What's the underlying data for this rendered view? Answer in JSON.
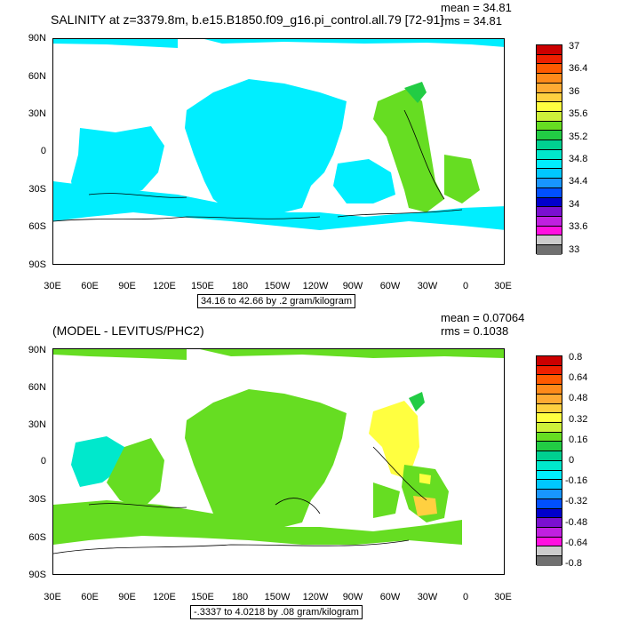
{
  "top": {
    "title": "SALINITY at z=3379.8m, b.e15.B1850.f09_g16.pi_control.all.79 [72-91]",
    "mean": "mean = 34.81",
    "rms": "rms = 34.81",
    "range_label": "34.16 to 42.66 by .2 gram/kilogram",
    "colorbar_labels": [
      "37",
      "36.4",
      "36",
      "35.6",
      "35.2",
      "34.8",
      "34.4",
      "34",
      "33.6",
      "33"
    ],
    "colorbar_colors": [
      "#cc0000",
      "#ee2000",
      "#ff5a00",
      "#ff8a1a",
      "#ffaa33",
      "#ffd040",
      "#ffff40",
      "#cdf03a",
      "#66dd22",
      "#22cc44",
      "#00d090",
      "#00e8cc",
      "#00eeff",
      "#00c8ff",
      "#1896ff",
      "#0050ff",
      "#0000cc",
      "#7a10d0",
      "#c020e0",
      "#ff10e0",
      "#cccccc",
      "#707070"
    ]
  },
  "bottom": {
    "title": "(MODEL - LEVITUS/PHC2)",
    "mean": "mean = 0.07064",
    "rms": "rms = 0.1038",
    "range_label": "-.3337 to 4.0218 by .08 gram/kilogram",
    "colorbar_labels": [
      "0.8",
      "0.64",
      "0.48",
      "0.32",
      "0.16",
      "0",
      "-0.16",
      "-0.32",
      "-0.48",
      "-0.64",
      "-0.8"
    ],
    "colorbar_colors": [
      "#cc0000",
      "#ee2000",
      "#ff5a00",
      "#ff8a1a",
      "#ffaa33",
      "#ffd040",
      "#ffff40",
      "#cdf03a",
      "#66dd22",
      "#22cc44",
      "#00d090",
      "#00e8cc",
      "#00eeff",
      "#00c8ff",
      "#1896ff",
      "#0050ff",
      "#0000cc",
      "#7a10d0",
      "#c020e0",
      "#ff10e0",
      "#cccccc",
      "#707070"
    ]
  },
  "axes": {
    "y_labels": [
      "90N",
      "60N",
      "30N",
      "0",
      "30S",
      "60S",
      "90S"
    ],
    "x_labels": [
      "30E",
      "60E",
      "90E",
      "120E",
      "150E",
      "180",
      "150W",
      "120W",
      "90W",
      "60W",
      "30W",
      "0",
      "30E"
    ]
  },
  "colors": {
    "cyan": "#00eeff",
    "green": "#66dd22",
    "teal": "#22cc44",
    "yellow": "#ffff40",
    "orange": "#ffd040"
  }
}
